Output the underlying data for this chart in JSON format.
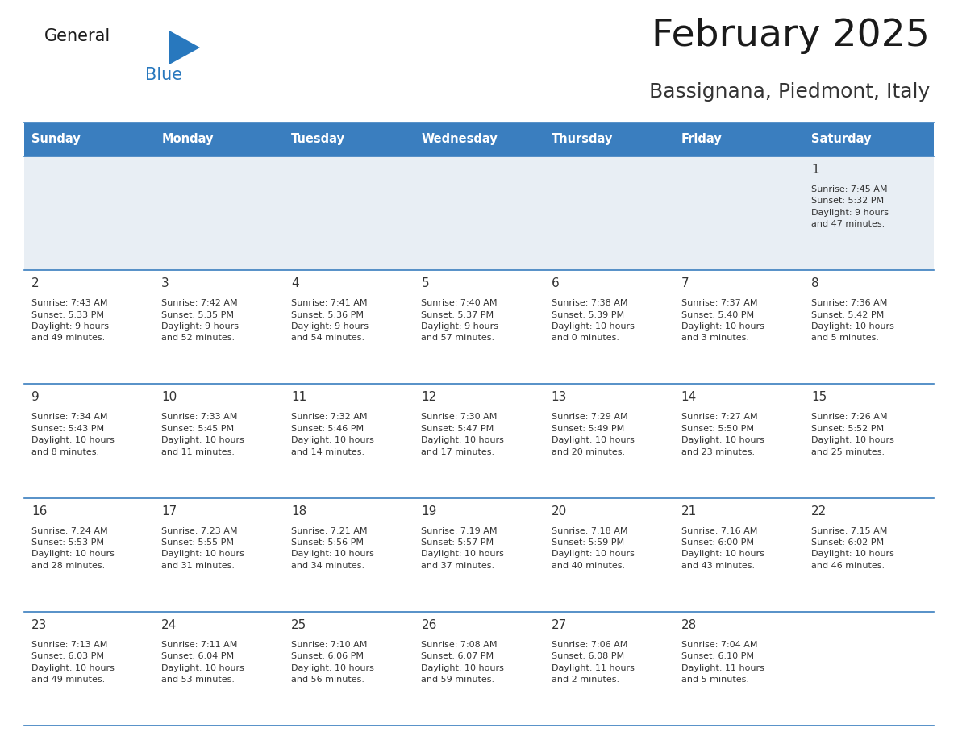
{
  "title": "February 2025",
  "subtitle": "Bassignana, Piedmont, Italy",
  "days_of_week": [
    "Sunday",
    "Monday",
    "Tuesday",
    "Wednesday",
    "Thursday",
    "Friday",
    "Saturday"
  ],
  "header_bg": "#3A7EBF",
  "header_text": "#FFFFFF",
  "row1_bg": "#E8EEF4",
  "row_bg": "#FFFFFF",
  "cell_border": "#3A7EBF",
  "day_number_color": "#333333",
  "info_text_color": "#333333",
  "title_color": "#1a1a1a",
  "subtitle_color": "#333333",
  "logo_text_color": "#1a1a1a",
  "logo_blue_color": "#2878BE",
  "calendar_data": [
    [
      {
        "day": null,
        "info": ""
      },
      {
        "day": null,
        "info": ""
      },
      {
        "day": null,
        "info": ""
      },
      {
        "day": null,
        "info": ""
      },
      {
        "day": null,
        "info": ""
      },
      {
        "day": null,
        "info": ""
      },
      {
        "day": 1,
        "info": "Sunrise: 7:45 AM\nSunset: 5:32 PM\nDaylight: 9 hours\nand 47 minutes."
      }
    ],
    [
      {
        "day": 2,
        "info": "Sunrise: 7:43 AM\nSunset: 5:33 PM\nDaylight: 9 hours\nand 49 minutes."
      },
      {
        "day": 3,
        "info": "Sunrise: 7:42 AM\nSunset: 5:35 PM\nDaylight: 9 hours\nand 52 minutes."
      },
      {
        "day": 4,
        "info": "Sunrise: 7:41 AM\nSunset: 5:36 PM\nDaylight: 9 hours\nand 54 minutes."
      },
      {
        "day": 5,
        "info": "Sunrise: 7:40 AM\nSunset: 5:37 PM\nDaylight: 9 hours\nand 57 minutes."
      },
      {
        "day": 6,
        "info": "Sunrise: 7:38 AM\nSunset: 5:39 PM\nDaylight: 10 hours\nand 0 minutes."
      },
      {
        "day": 7,
        "info": "Sunrise: 7:37 AM\nSunset: 5:40 PM\nDaylight: 10 hours\nand 3 minutes."
      },
      {
        "day": 8,
        "info": "Sunrise: 7:36 AM\nSunset: 5:42 PM\nDaylight: 10 hours\nand 5 minutes."
      }
    ],
    [
      {
        "day": 9,
        "info": "Sunrise: 7:34 AM\nSunset: 5:43 PM\nDaylight: 10 hours\nand 8 minutes."
      },
      {
        "day": 10,
        "info": "Sunrise: 7:33 AM\nSunset: 5:45 PM\nDaylight: 10 hours\nand 11 minutes."
      },
      {
        "day": 11,
        "info": "Sunrise: 7:32 AM\nSunset: 5:46 PM\nDaylight: 10 hours\nand 14 minutes."
      },
      {
        "day": 12,
        "info": "Sunrise: 7:30 AM\nSunset: 5:47 PM\nDaylight: 10 hours\nand 17 minutes."
      },
      {
        "day": 13,
        "info": "Sunrise: 7:29 AM\nSunset: 5:49 PM\nDaylight: 10 hours\nand 20 minutes."
      },
      {
        "day": 14,
        "info": "Sunrise: 7:27 AM\nSunset: 5:50 PM\nDaylight: 10 hours\nand 23 minutes."
      },
      {
        "day": 15,
        "info": "Sunrise: 7:26 AM\nSunset: 5:52 PM\nDaylight: 10 hours\nand 25 minutes."
      }
    ],
    [
      {
        "day": 16,
        "info": "Sunrise: 7:24 AM\nSunset: 5:53 PM\nDaylight: 10 hours\nand 28 minutes."
      },
      {
        "day": 17,
        "info": "Sunrise: 7:23 AM\nSunset: 5:55 PM\nDaylight: 10 hours\nand 31 minutes."
      },
      {
        "day": 18,
        "info": "Sunrise: 7:21 AM\nSunset: 5:56 PM\nDaylight: 10 hours\nand 34 minutes."
      },
      {
        "day": 19,
        "info": "Sunrise: 7:19 AM\nSunset: 5:57 PM\nDaylight: 10 hours\nand 37 minutes."
      },
      {
        "day": 20,
        "info": "Sunrise: 7:18 AM\nSunset: 5:59 PM\nDaylight: 10 hours\nand 40 minutes."
      },
      {
        "day": 21,
        "info": "Sunrise: 7:16 AM\nSunset: 6:00 PM\nDaylight: 10 hours\nand 43 minutes."
      },
      {
        "day": 22,
        "info": "Sunrise: 7:15 AM\nSunset: 6:02 PM\nDaylight: 10 hours\nand 46 minutes."
      }
    ],
    [
      {
        "day": 23,
        "info": "Sunrise: 7:13 AM\nSunset: 6:03 PM\nDaylight: 10 hours\nand 49 minutes."
      },
      {
        "day": 24,
        "info": "Sunrise: 7:11 AM\nSunset: 6:04 PM\nDaylight: 10 hours\nand 53 minutes."
      },
      {
        "day": 25,
        "info": "Sunrise: 7:10 AM\nSunset: 6:06 PM\nDaylight: 10 hours\nand 56 minutes."
      },
      {
        "day": 26,
        "info": "Sunrise: 7:08 AM\nSunset: 6:07 PM\nDaylight: 10 hours\nand 59 minutes."
      },
      {
        "day": 27,
        "info": "Sunrise: 7:06 AM\nSunset: 6:08 PM\nDaylight: 11 hours\nand 2 minutes."
      },
      {
        "day": 28,
        "info": "Sunrise: 7:04 AM\nSunset: 6:10 PM\nDaylight: 11 hours\nand 5 minutes."
      },
      {
        "day": null,
        "info": ""
      }
    ]
  ]
}
